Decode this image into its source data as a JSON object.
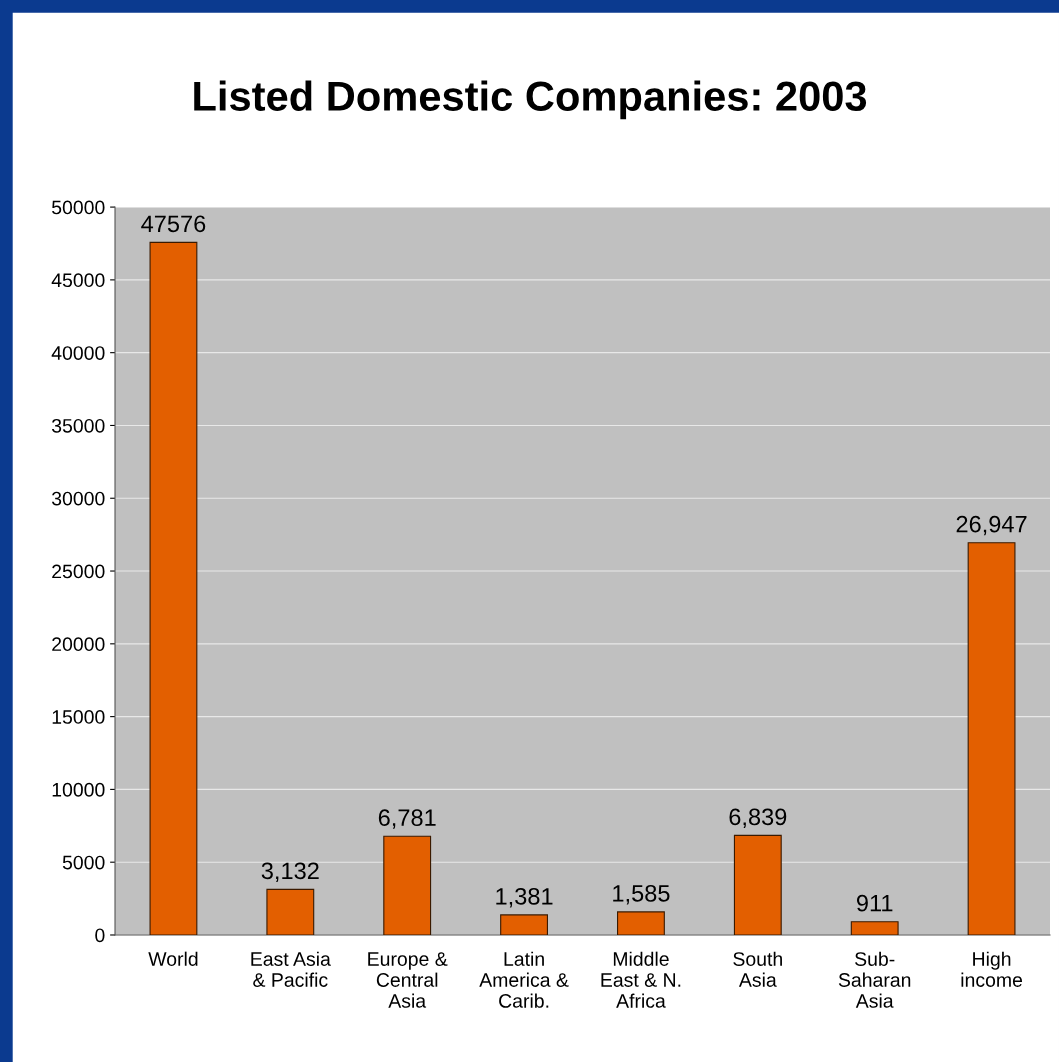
{
  "chart_data": {
    "type": "bar",
    "title": "Listed Domestic Companies: 2003",
    "categories": [
      "World",
      "East Asia\n& Pacific",
      "Europe &\nCentral\nAsia",
      "Latin\nAmerica &\nCarib.",
      "Middle\nEast & N.\nAfrica",
      "South\nAsia",
      "Sub-\nSaharan\nAsia",
      "High\nincome"
    ],
    "values": [
      47576,
      3132,
      6781,
      1381,
      1585,
      6839,
      911,
      26947
    ],
    "value_labels": [
      "47576",
      "3,132",
      "6,781",
      "1,381",
      "1,585",
      "6,839",
      "911",
      "26,947"
    ],
    "color": "#e35f00",
    "ylim": [
      0,
      50000
    ],
    "yticks": [
      0,
      5000,
      10000,
      15000,
      20000,
      25000,
      30000,
      35000,
      40000,
      45000,
      50000
    ],
    "grid": "y",
    "legend": false
  }
}
